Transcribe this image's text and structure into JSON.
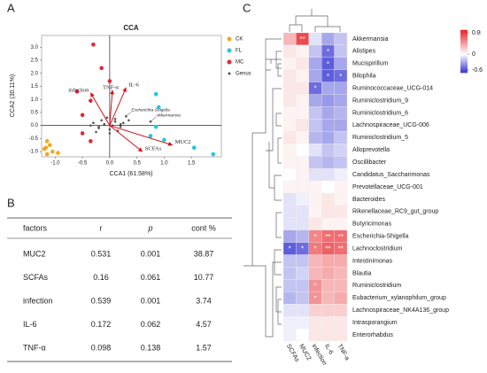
{
  "panel_labels": [
    "A",
    "B",
    "C"
  ],
  "chart_data": [
    {
      "type": "scatter",
      "title": "CCA",
      "xlabel": "CCA1 (61.58%)",
      "ylabel": "CCA2 (30.11%)",
      "xlim": [
        -1.25,
        2.05
      ],
      "ylim": [
        -1.2,
        3.45
      ],
      "xticks": [
        {
          "value": -1,
          "label": "-1.0"
        },
        {
          "value": -0.5,
          "label": "-0.5"
        },
        {
          "value": 0,
          "label": "0.0"
        },
        {
          "value": 0.5,
          "label": "0.5"
        },
        {
          "value": 1,
          "label": "1.0"
        },
        {
          "value": 1.5,
          "label": "1.5"
        }
      ],
      "yticks": [
        {
          "value": -1,
          "label": "-1.0"
        },
        {
          "value": -0.5,
          "label": "-0.5"
        },
        {
          "value": 0,
          "label": "0.0"
        },
        {
          "value": 0.5,
          "label": "0.5"
        },
        {
          "value": 1,
          "label": "1.0"
        },
        {
          "value": 1.5,
          "label": "1.5"
        },
        {
          "value": 2,
          "label": "2.0"
        },
        {
          "value": 2.5,
          "label": "2.5"
        },
        {
          "value": 3,
          "label": "3.0"
        }
      ],
      "series": [
        {
          "name": "CK",
          "color": "#f2a81d",
          "x": [
            -1.15,
            -1.1,
            -1.17,
            -1.05,
            -1.15,
            -0.95,
            -1.2
          ],
          "y": [
            -0.6,
            -0.75,
            -0.85,
            -1.0,
            -1.1,
            -1.05,
            -0.9
          ]
        },
        {
          "name": "FL",
          "color": "#22c8dc",
          "x": [
            0.85,
            0.9,
            0.85,
            1.0,
            1.55,
            1.9,
            0.75
          ],
          "y": [
            1.2,
            0.7,
            -0.05,
            -0.55,
            -0.85,
            -1.1,
            -0.4
          ]
        },
        {
          "name": "MC",
          "color": "#e0283a",
          "x": [
            -0.3,
            -0.15,
            -0.6,
            -0.35,
            -0.5,
            -0.5,
            -0.35,
            0.0
          ],
          "y": [
            3.1,
            2.2,
            1.3,
            0.95,
            0.4,
            -0.3,
            -0.6,
            1.7
          ]
        },
        {
          "name": "Genus",
          "color": "#555555",
          "x": [
            -0.3,
            -0.2,
            -0.1,
            0.0,
            0.1,
            0.2,
            -0.25,
            -0.15,
            0.05,
            0.15,
            0.25,
            -0.05,
            0.3,
            0.35,
            0.75,
            -0.35,
            0.0,
            0.1,
            -0.2,
            0.2
          ],
          "y": [
            0.1,
            -0.1,
            0.05,
            -0.15,
            0.15,
            -0.05,
            -0.25,
            0.2,
            0.0,
            -0.2,
            0.1,
            0.3,
            0.35,
            0.2,
            0.15,
            0.0,
            -0.3,
            0.25,
            -0.05,
            0.05
          ]
        }
      ],
      "vectors": [
        {
          "name": "IL-6",
          "x": 0.3,
          "y": 1.45
        },
        {
          "name": "TNF-α",
          "x": 0.05,
          "y": 1.35
        },
        {
          "name": "infection",
          "x": -0.35,
          "y": 1.25
        },
        {
          "name": "MUC2",
          "x": 1.15,
          "y": -0.75
        },
        {
          "name": "SCFAs",
          "x": 0.6,
          "y": -1.0
        }
      ],
      "annotations": [
        {
          "text": "Escherichia-Shigella",
          "x": 0.3,
          "y": 0.35
        },
        {
          "text": "Akkermansia",
          "x": 0.75,
          "y": 0.15
        }
      ]
    },
    {
      "type": "heatmap",
      "columns": [
        "SCFAs",
        "MUC2",
        "infection",
        "IL-6",
        "TNF-a"
      ],
      "rows": [
        "Akkermansia",
        "Alistipes",
        "Mucispirillum",
        "Bilophila",
        "Ruminococcaceae_UCG-014",
        "Ruminiclostridium_9",
        "Ruminiclostridium_6",
        "Lachnospiraceae_UCG-006",
        "Ruminiclostridium_5",
        "Alloprevotella",
        "Oscillibacter",
        "Candidatus_Saccharimonas",
        "Prevotellaceae_UCG-001",
        "Bacteroides",
        "Rikenellaceae_RC9_gut_group",
        "Butyricimonas",
        "Escherichia-Shigella",
        "Lachnoclostridium",
        "Intestinimonas",
        "Blautia",
        "Ruminiclostridium",
        "Eubacterium_xylanophilum_group",
        "Lachnospiraceae_NK4A136_group",
        "Intrasporangium",
        "Enterorhabdus"
      ],
      "values": [
        [
          0.3,
          0.75,
          -0.1,
          -0.3,
          -0.2
        ],
        [
          0.1,
          0.05,
          -0.2,
          -0.5,
          -0.2
        ],
        [
          0.05,
          0.1,
          -0.3,
          -0.55,
          -0.3
        ],
        [
          0.1,
          0.05,
          -0.3,
          -0.55,
          -0.5
        ],
        [
          0.1,
          0.1,
          -0.5,
          -0.3,
          -0.3
        ],
        [
          0.1,
          0.05,
          -0.3,
          -0.35,
          -0.3
        ],
        [
          0.05,
          0.05,
          -0.2,
          -0.3,
          -0.25
        ],
        [
          0.05,
          0.1,
          -0.2,
          -0.3,
          -0.3
        ],
        [
          0.1,
          0.05,
          -0.25,
          -0.3,
          -0.2
        ],
        [
          0.05,
          0,
          -0.1,
          -0.2,
          -0.15
        ],
        [
          0.05,
          0.05,
          -0.2,
          -0.25,
          -0.2
        ],
        [
          0,
          0.05,
          -0.1,
          -0.1,
          -0.05
        ],
        [
          0.05,
          0.05,
          0.05,
          0,
          0.05
        ],
        [
          -0.1,
          -0.05,
          0.05,
          0.1,
          0.05
        ],
        [
          -0.1,
          -0.1,
          0.05,
          0.1,
          0.1
        ],
        [
          -0.1,
          -0.1,
          0.1,
          0.05,
          0.05
        ],
        [
          -0.3,
          -0.25,
          0.5,
          0.6,
          0.6
        ],
        [
          -0.55,
          -0.5,
          0.55,
          0.65,
          0.6
        ],
        [
          -0.2,
          -0.2,
          0.3,
          0.35,
          0.35
        ],
        [
          -0.2,
          -0.15,
          0.3,
          0.35,
          0.3
        ],
        [
          -0.2,
          -0.2,
          0.45,
          0.3,
          0.3
        ],
        [
          -0.25,
          -0.2,
          0.45,
          0.3,
          0.35
        ],
        [
          -0.1,
          -0.1,
          0.2,
          0.2,
          0.2
        ],
        [
          -0.05,
          -0.05,
          0.1,
          0.1,
          0.1
        ],
        [
          -0.05,
          0,
          0.1,
          0.1,
          0.1
        ]
      ],
      "stars": [
        [
          null,
          "**",
          null,
          null,
          null
        ],
        [
          null,
          null,
          null,
          "*",
          null
        ],
        [
          null,
          null,
          null,
          "*",
          null
        ],
        [
          null,
          null,
          null,
          "*",
          "*"
        ],
        [
          null,
          null,
          "*",
          null,
          null
        ],
        [
          null,
          null,
          null,
          null,
          null
        ],
        [
          null,
          null,
          null,
          null,
          null
        ],
        [
          null,
          null,
          null,
          null,
          null
        ],
        [
          null,
          null,
          null,
          null,
          null
        ],
        [
          null,
          null,
          null,
          null,
          null
        ],
        [
          null,
          null,
          null,
          null,
          null
        ],
        [
          null,
          null,
          null,
          null,
          null
        ],
        [
          null,
          null,
          null,
          null,
          null
        ],
        [
          null,
          null,
          null,
          null,
          null
        ],
        [
          null,
          null,
          null,
          null,
          null
        ],
        [
          null,
          null,
          null,
          null,
          null
        ],
        [
          null,
          null,
          "*",
          "**",
          "**"
        ],
        [
          "*",
          "*",
          "*",
          "**",
          "**"
        ],
        [
          null,
          null,
          null,
          null,
          null
        ],
        [
          null,
          null,
          null,
          null,
          null
        ],
        [
          null,
          null,
          "*",
          null,
          null
        ],
        [
          null,
          null,
          "*",
          null,
          null
        ],
        [
          null,
          null,
          null,
          null,
          null
        ],
        [
          null,
          null,
          null,
          null,
          null
        ],
        [
          null,
          null,
          null,
          null,
          null
        ]
      ],
      "clim": [
        -0.7,
        0.9
      ],
      "cticks": [
        0.8,
        0,
        -0.6
      ],
      "colors": [
        "#3232d2",
        "#ffffff",
        "#e8262a"
      ]
    }
  ],
  "table": {
    "header": [
      "factors",
      "r",
      "p",
      "cont %"
    ],
    "rows": [
      [
        "MUC2",
        0.531,
        0.001,
        38.87
      ],
      [
        "SCFAs",
        0.16,
        0.061,
        10.77
      ],
      [
        "infection",
        0.539,
        0.001,
        3.74
      ],
      [
        "IL-6",
        0.172,
        0.062,
        4.57
      ],
      [
        "TNF-α",
        0.098,
        0.138,
        1.57
      ]
    ]
  }
}
